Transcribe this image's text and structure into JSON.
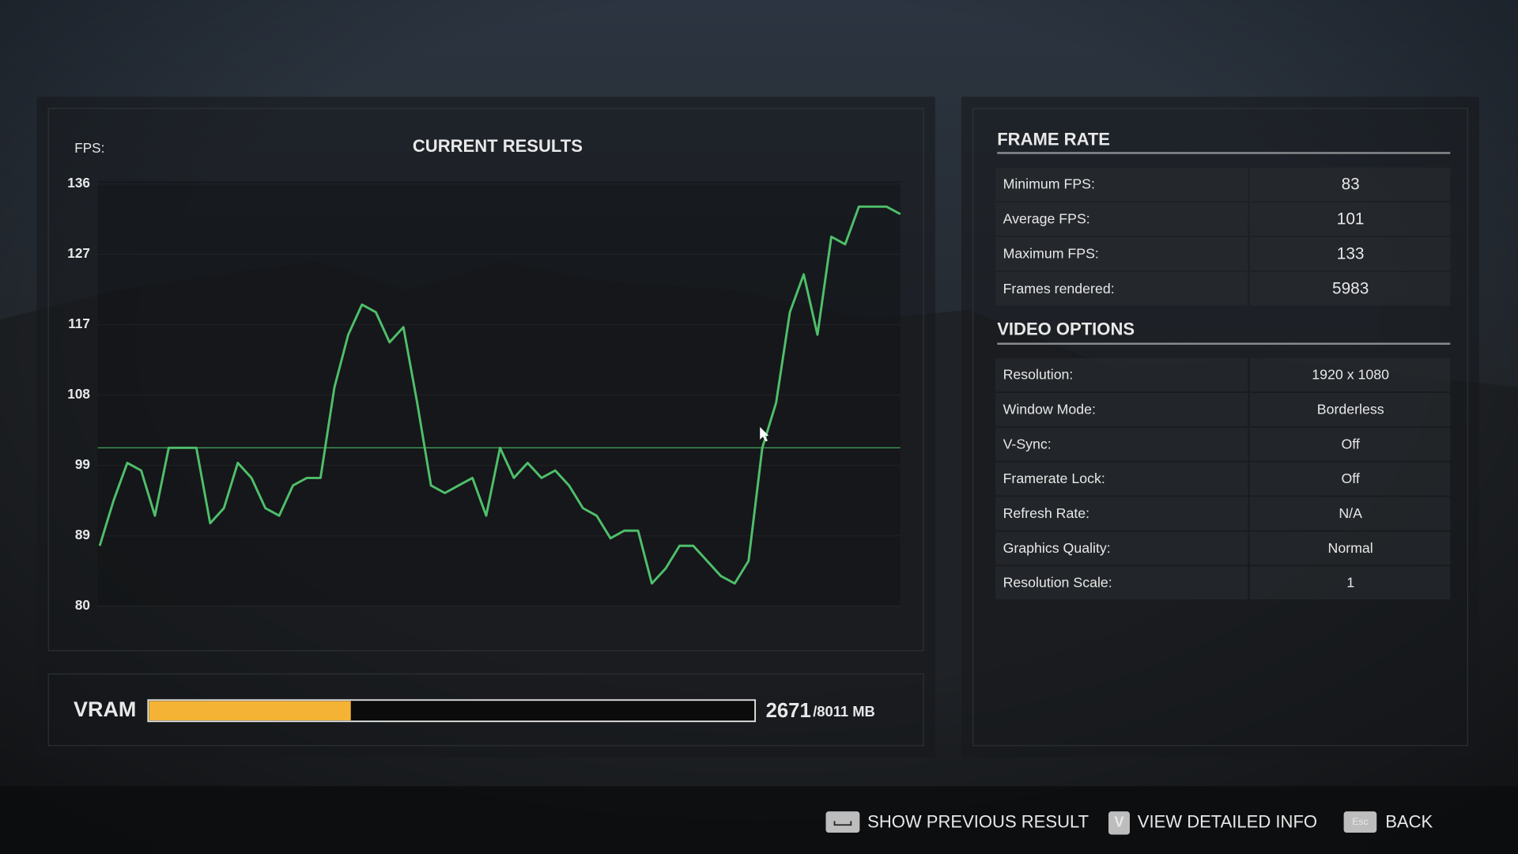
{
  "chart_data": {
    "type": "line",
    "title": "CURRENT RESULTS",
    "y_label": "FPS:",
    "color": "#4fbf6a",
    "average_color": "#3f9a55",
    "values": [
      88,
      94,
      99,
      98,
      92,
      101,
      101,
      101,
      91,
      93,
      99,
      97,
      93,
      92,
      96,
      97,
      97,
      109,
      116,
      120,
      119,
      115,
      117,
      107,
      96,
      95,
      96,
      97,
      92,
      101,
      97,
      99,
      97,
      98,
      96,
      93,
      92,
      89,
      90,
      90,
      83,
      85,
      88,
      88,
      86,
      84,
      83,
      86,
      101,
      107,
      119,
      124,
      116,
      129,
      128,
      133,
      133,
      133,
      132
    ],
    "ylim": [
      80,
      136
    ],
    "yticks": [
      80,
      {
        "value": 89.33,
        "label": "89"
      },
      {
        "value": 98.67,
        "label": "99"
      },
      108,
      {
        "value": 117.33,
        "label": "117"
      },
      {
        "value": 126.67,
        "label": "127"
      },
      136
    ],
    "grid": true
  },
  "vram": {
    "label": "VRAM",
    "used": 2671,
    "total": {
      "value": 8011,
      "label": "/8011 MB"
    },
    "color": "#f5b335"
  },
  "frame_rate": {
    "title": "FRAME RATE",
    "rows": [
      {
        "label": "Minimum FPS:",
        "value": 83
      },
      {
        "label": "Average FPS:",
        "value": 101
      },
      {
        "label": "Maximum FPS:",
        "value": 133
      },
      {
        "label": "Frames rendered:",
        "value": 5983
      }
    ]
  },
  "video_options": {
    "title": "VIDEO OPTIONS",
    "rows": [
      {
        "label": "Resolution:",
        "value": "1920 x 1080"
      },
      {
        "label": "Window Mode:",
        "value": "Borderless"
      },
      {
        "label": "V-Sync:",
        "value": "Off"
      },
      {
        "label": "Framerate Lock:",
        "value": "Off"
      },
      {
        "label": "Refresh Rate:",
        "value": "N/A"
      },
      {
        "label": "Graphics Quality:",
        "value": "Normal"
      },
      {
        "label": "Resolution Scale:",
        "value": 1
      }
    ]
  },
  "footer": {
    "buttons": [
      {
        "label": "SHOW PREVIOUS RESULT"
      },
      {
        "key": "V",
        "label": "VIEW DETAILED INFO"
      },
      {
        "key": "Esc",
        "label": "BACK"
      }
    ]
  }
}
